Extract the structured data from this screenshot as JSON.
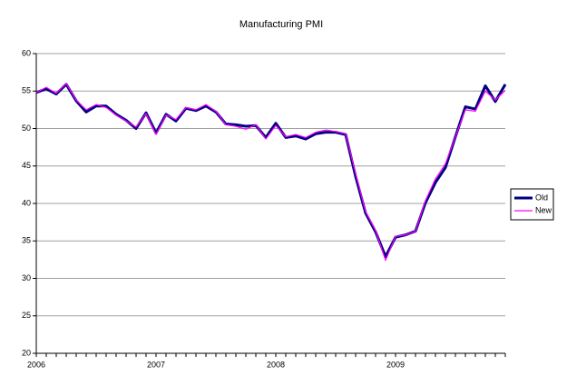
{
  "chart_data": {
    "type": "line",
    "title": "Manufacturing PMI",
    "categories": [
      "2006",
      null,
      null,
      null,
      null,
      null,
      null,
      null,
      null,
      null,
      null,
      null,
      "2007",
      null,
      null,
      null,
      null,
      null,
      null,
      null,
      null,
      null,
      null,
      null,
      "2008",
      null,
      null,
      null,
      null,
      null,
      null,
      null,
      null,
      null,
      null,
      null,
      "2009",
      null,
      null,
      null,
      null,
      null,
      null,
      null,
      null,
      null,
      null,
      null
    ],
    "series": [
      {
        "name": "Old",
        "color": "#000080",
        "width": 3,
        "values": [
          54.8,
          55.3,
          54.6,
          55.9,
          53.7,
          52.2,
          53.0,
          53.0,
          51.9,
          51.1,
          50.0,
          52.1,
          49.4,
          51.9,
          51.0,
          52.7,
          52.4,
          53.0,
          52.2,
          50.6,
          50.5,
          50.3,
          50.4,
          48.8,
          50.7,
          48.8,
          49.0,
          48.6,
          49.3,
          49.5,
          49.5,
          49.2,
          43.6,
          38.7,
          36.2,
          32.9,
          35.5,
          35.8,
          36.3,
          40.1,
          42.8,
          44.8,
          48.9,
          52.9,
          52.6,
          55.7,
          53.6,
          55.9
        ]
      },
      {
        "name": "New",
        "color": "#ff00ff",
        "width": 1.2,
        "values": [
          54.8,
          55.5,
          54.7,
          56.0,
          53.8,
          52.5,
          53.2,
          52.8,
          51.8,
          51.0,
          50.2,
          52.0,
          49.2,
          51.8,
          51.2,
          52.8,
          52.5,
          53.2,
          52.3,
          50.5,
          50.3,
          49.9,
          50.5,
          48.6,
          50.4,
          48.9,
          49.2,
          48.8,
          49.5,
          49.8,
          49.6,
          49.3,
          44.0,
          38.9,
          36.4,
          32.4,
          35.6,
          35.8,
          36.3,
          40.4,
          43.3,
          45.3,
          48.9,
          52.5,
          52.3,
          55.0,
          53.8,
          55.1
        ]
      }
    ],
    "ylim": [
      20,
      60
    ],
    "yticks": [
      20,
      25,
      30,
      35,
      40,
      45,
      50,
      55,
      60
    ],
    "grid": true,
    "legend": "right"
  }
}
